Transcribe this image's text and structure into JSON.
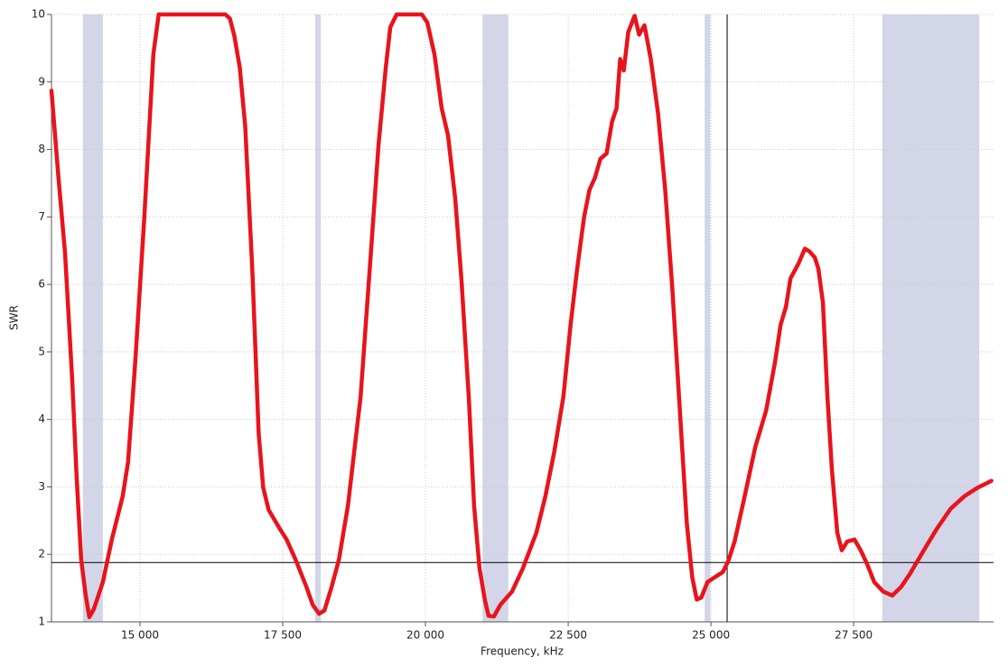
{
  "chart_data": {
    "type": "line",
    "xlabel": "Frequency, kHz",
    "ylabel": "SWR",
    "xlim": [
      13450,
      29950
    ],
    "ylim": [
      1,
      10
    ],
    "xticks": [
      {
        "value": 15000,
        "label": "15 000"
      },
      {
        "value": 17500,
        "label": "17 500"
      },
      {
        "value": 20000,
        "label": "20 000"
      },
      {
        "value": 22500,
        "label": "22 500"
      },
      {
        "value": 25000,
        "label": "25 000"
      },
      {
        "value": 27500,
        "label": "27 500"
      }
    ],
    "yticks": [
      1,
      2,
      3,
      4,
      5,
      6,
      7,
      8,
      9,
      10
    ],
    "grid": true,
    "color": "#e8141c",
    "band_color": "#d3d6e8",
    "bands": [
      {
        "from": 14000,
        "to": 14350
      },
      {
        "from": 18068,
        "to": 18168
      },
      {
        "from": 21000,
        "to": 21450
      },
      {
        "from": 24890,
        "to": 24990
      },
      {
        "from": 28000,
        "to": 29700
      }
    ],
    "cursor": {
      "x": 25284,
      "y": 1.88
    },
    "x": [
      13450,
      13576,
      13687,
      13813,
      13892,
      13971,
      14050,
      14113,
      14192,
      14350,
      14507,
      14697,
      14792,
      14918,
      15076,
      15234,
      15328,
      16496,
      16575,
      16654,
      16748,
      16843,
      16969,
      17079,
      17158,
      17253,
      17442,
      17568,
      17726,
      17915,
      18026,
      18137,
      18231,
      18357,
      18484,
      18642,
      18863,
      19021,
      19179,
      19305,
      19384,
      19495,
      19937,
      20032,
      20158,
      20284,
      20395,
      20521,
      20631,
      20758,
      20852,
      20947,
      21042,
      21105,
      21200,
      21310,
      21516,
      21705,
      21942,
      22100,
      22258,
      22415,
      22542,
      22652,
      22779,
      22873,
      22968,
      23063,
      23173,
      23268,
      23347,
      23410,
      23473,
      23552,
      23663,
      23742,
      23836,
      23947,
      24073,
      24199,
      24325,
      24451,
      24577,
      24672,
      24751,
      24830,
      24940,
      25067,
      25209,
      25304,
      25414,
      25572,
      25777,
      25966,
      26124,
      26219,
      26314,
      26393,
      26535,
      26645,
      26724,
      26819,
      26882,
      26961,
      27040,
      27119,
      27213,
      27292,
      27387,
      27513,
      27623,
      27734,
      27860,
      28018,
      28176,
      28334,
      28491,
      28728,
      28965,
      29202,
      29438,
      29675,
      29912
    ],
    "values": [
      8.87,
      7.54,
      6.47,
      4.6,
      3.13,
      1.92,
      1.39,
      1.07,
      1.19,
      1.59,
      2.22,
      2.86,
      3.37,
      4.86,
      7.0,
      9.41,
      10,
      10,
      9.94,
      9.68,
      9.21,
      8.34,
      6.2,
      3.79,
      2.99,
      2.66,
      2.39,
      2.22,
      1.92,
      1.52,
      1.25,
      1.12,
      1.17,
      1.52,
      1.92,
      2.72,
      4.33,
      6.2,
      8.07,
      9.21,
      9.81,
      10,
      10,
      9.88,
      9.41,
      8.61,
      8.21,
      7.27,
      6.07,
      4.33,
      2.72,
      1.79,
      1.32,
      1.09,
      1.08,
      1.25,
      1.45,
      1.79,
      2.32,
      2.86,
      3.53,
      4.33,
      5.4,
      6.2,
      7.0,
      7.4,
      7.58,
      7.86,
      7.94,
      8.41,
      8.61,
      9.34,
      9.17,
      9.74,
      9.98,
      9.7,
      9.84,
      9.34,
      8.54,
      7.4,
      5.93,
      4.2,
      2.46,
      1.66,
      1.33,
      1.36,
      1.59,
      1.66,
      1.74,
      1.9,
      2.19,
      2.79,
      3.59,
      4.13,
      4.86,
      5.4,
      5.67,
      6.09,
      6.31,
      6.53,
      6.49,
      6.4,
      6.23,
      5.73,
      4.33,
      3.26,
      2.32,
      2.06,
      2.19,
      2.22,
      2.06,
      1.86,
      1.59,
      1.45,
      1.39,
      1.52,
      1.72,
      2.06,
      2.39,
      2.68,
      2.86,
      2.99,
      3.09
    ]
  }
}
